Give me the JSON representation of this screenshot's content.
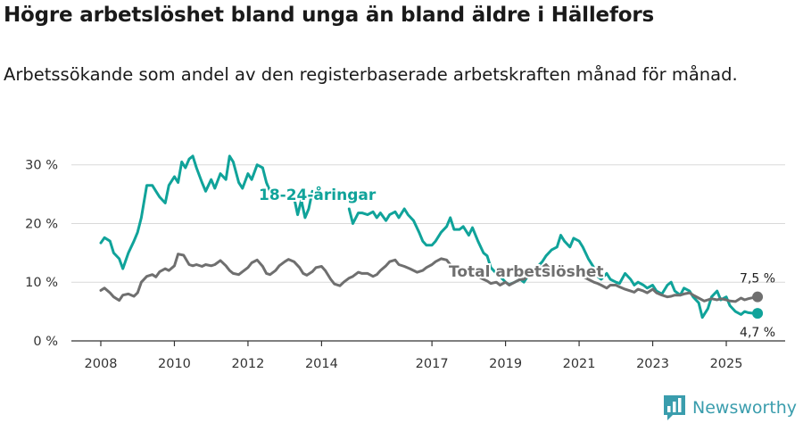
{
  "title": "Högre arbetslöshet bland unga än bland äldre i Hällefors",
  "subtitle": "Arbetssökande som andel av den registerbaserade arbetskraften månad för månad.",
  "brand": {
    "name": "Newsworthy",
    "icon": "newsworthy-logo-icon"
  },
  "colors": {
    "young": "#10a39a",
    "total": "#6f6f6f",
    "grid": "#d9d9d9",
    "axis": "#333333"
  },
  "chart_data": {
    "type": "line",
    "title": "Högre arbetslöshet bland unga än bland äldre i Hällefors",
    "xlabel": "",
    "ylabel": "",
    "xlim": [
      2007.2,
      2026.6
    ],
    "ylim": [
      0,
      33
    ],
    "x_ticks": [
      2008,
      2010,
      2012,
      2014,
      2017,
      2019,
      2021,
      2023,
      2025
    ],
    "y_ticks": [
      {
        "value": 0,
        "label": "0 %"
      },
      {
        "value": 10,
        "label": "10 %"
      },
      {
        "value": 20,
        "label": "20 %"
      },
      {
        "value": 30,
        "label": "30 %"
      }
    ],
    "series": [
      {
        "name": "18-24-åringar",
        "label": "18-24-åringar",
        "points": [
          [
            2008.0,
            16.7
          ],
          [
            2008.1,
            17.6
          ],
          [
            2008.25,
            17.0
          ],
          [
            2008.35,
            15.0
          ],
          [
            2008.5,
            14.0
          ],
          [
            2008.6,
            12.3
          ],
          [
            2008.75,
            15.0
          ],
          [
            2008.9,
            17.0
          ],
          [
            2009.0,
            18.5
          ],
          [
            2009.1,
            21.0
          ],
          [
            2009.25,
            26.5
          ],
          [
            2009.4,
            26.5
          ],
          [
            2009.5,
            25.5
          ],
          [
            2009.6,
            24.5
          ],
          [
            2009.75,
            23.5
          ],
          [
            2009.85,
            26.5
          ],
          [
            2010.0,
            28.0
          ],
          [
            2010.1,
            27.0
          ],
          [
            2010.2,
            30.5
          ],
          [
            2010.3,
            29.5
          ],
          [
            2010.4,
            31.0
          ],
          [
            2010.5,
            31.5
          ],
          [
            2010.6,
            29.5
          ],
          [
            2010.75,
            27.0
          ],
          [
            2010.85,
            25.5
          ],
          [
            2011.0,
            27.5
          ],
          [
            2011.1,
            26.0
          ],
          [
            2011.25,
            28.5
          ],
          [
            2011.4,
            27.5
          ],
          [
            2011.5,
            31.5
          ],
          [
            2011.6,
            30.5
          ],
          [
            2011.75,
            27.0
          ],
          [
            2011.85,
            26.0
          ],
          [
            2012.0,
            28.5
          ],
          [
            2012.1,
            27.5
          ],
          [
            2012.25,
            30.0
          ],
          [
            2012.4,
            29.5
          ],
          [
            2012.5,
            27.0
          ],
          [
            2012.6,
            25.5
          ],
          [
            2012.75,
            25.0
          ],
          null,
          [
            2013.25,
            24.5
          ],
          [
            2013.35,
            21.5
          ],
          [
            2013.45,
            24.0
          ],
          [
            2013.55,
            21.0
          ],
          [
            2013.65,
            22.5
          ],
          [
            2013.75,
            25.5
          ],
          [
            2013.85,
            25.0
          ],
          null,
          [
            2014.75,
            22.5
          ],
          [
            2014.85,
            20.0
          ],
          [
            2015.0,
            21.8
          ],
          [
            2015.1,
            21.8
          ],
          [
            2015.25,
            21.5
          ],
          [
            2015.4,
            22.0
          ],
          [
            2015.5,
            21.0
          ],
          [
            2015.6,
            21.8
          ],
          [
            2015.75,
            20.5
          ],
          [
            2015.85,
            21.5
          ],
          [
            2016.0,
            22.0
          ],
          [
            2016.1,
            21.0
          ],
          [
            2016.25,
            22.5
          ],
          [
            2016.35,
            21.5
          ],
          [
            2016.5,
            20.5
          ],
          [
            2016.65,
            18.5
          ],
          [
            2016.75,
            17.0
          ],
          [
            2016.85,
            16.3
          ],
          [
            2017.0,
            16.3
          ],
          [
            2017.1,
            17.0
          ],
          [
            2017.25,
            18.5
          ],
          [
            2017.4,
            19.5
          ],
          [
            2017.5,
            21.0
          ],
          [
            2017.6,
            19.0
          ],
          [
            2017.75,
            19.0
          ],
          [
            2017.85,
            19.5
          ],
          [
            2018.0,
            18.0
          ],
          [
            2018.1,
            19.3
          ],
          [
            2018.25,
            17.0
          ],
          [
            2018.4,
            15.0
          ],
          [
            2018.5,
            14.5
          ],
          [
            2018.6,
            12.5
          ],
          [
            2018.75,
            11.5
          ],
          [
            2018.85,
            11.0
          ],
          [
            2019.0,
            10.0
          ],
          [
            2019.1,
            9.6
          ],
          [
            2019.25,
            10.0
          ],
          [
            2019.4,
            10.5
          ],
          [
            2019.5,
            10.0
          ],
          [
            2019.6,
            11.0
          ],
          [
            2019.75,
            11.5
          ],
          [
            2019.85,
            12.5
          ],
          [
            2020.0,
            13.5
          ],
          [
            2020.1,
            14.5
          ],
          [
            2020.25,
            15.5
          ],
          [
            2020.4,
            16.0
          ],
          [
            2020.5,
            18.0
          ],
          [
            2020.6,
            17.0
          ],
          [
            2020.75,
            16.0
          ],
          [
            2020.85,
            17.5
          ],
          [
            2021.0,
            17.0
          ],
          [
            2021.1,
            16.0
          ],
          [
            2021.25,
            14.0
          ],
          [
            2021.4,
            12.5
          ],
          [
            2021.5,
            11.0
          ],
          [
            2021.6,
            10.5
          ],
          [
            2021.75,
            11.5
          ],
          [
            2021.85,
            10.5
          ],
          [
            2022.0,
            10.0
          ],
          [
            2022.1,
            9.8
          ],
          [
            2022.25,
            11.5
          ],
          [
            2022.4,
            10.5
          ],
          [
            2022.5,
            9.5
          ],
          [
            2022.6,
            10.0
          ],
          [
            2022.75,
            9.5
          ],
          [
            2022.85,
            9.0
          ],
          [
            2023.0,
            9.5
          ],
          [
            2023.1,
            8.5
          ],
          [
            2023.25,
            8.0
          ],
          [
            2023.4,
            9.5
          ],
          [
            2023.5,
            10.0
          ],
          [
            2023.6,
            8.5
          ],
          [
            2023.75,
            7.8
          ],
          [
            2023.85,
            9.0
          ],
          [
            2024.0,
            8.5
          ],
          [
            2024.1,
            7.5
          ],
          [
            2024.25,
            6.5
          ],
          [
            2024.35,
            4.0
          ],
          [
            2024.5,
            5.5
          ],
          [
            2024.6,
            7.5
          ],
          [
            2024.75,
            8.5
          ],
          [
            2024.85,
            7.0
          ],
          [
            2025.0,
            7.5
          ],
          [
            2025.1,
            6.0
          ],
          [
            2025.25,
            5.0
          ],
          [
            2025.4,
            4.5
          ],
          [
            2025.5,
            5.0
          ],
          [
            2025.6,
            4.8
          ],
          [
            2025.75,
            4.7
          ],
          [
            2025.85,
            4.7
          ]
        ]
      },
      {
        "name": "Total arbetslöshet",
        "label": "Total arbetslöshet",
        "points": [
          [
            2008.0,
            8.6
          ],
          [
            2008.1,
            9.0
          ],
          [
            2008.25,
            8.2
          ],
          [
            2008.35,
            7.5
          ],
          [
            2008.5,
            6.9
          ],
          [
            2008.6,
            7.8
          ],
          [
            2008.75,
            8.0
          ],
          [
            2008.9,
            7.6
          ],
          [
            2009.0,
            8.2
          ],
          [
            2009.1,
            10.0
          ],
          [
            2009.25,
            11.0
          ],
          [
            2009.4,
            11.3
          ],
          [
            2009.5,
            10.9
          ],
          [
            2009.6,
            11.8
          ],
          [
            2009.75,
            12.3
          ],
          [
            2009.85,
            12.0
          ],
          [
            2010.0,
            12.8
          ],
          [
            2010.1,
            14.8
          ],
          [
            2010.25,
            14.6
          ],
          [
            2010.4,
            13.0
          ],
          [
            2010.5,
            12.8
          ],
          [
            2010.6,
            13.0
          ],
          [
            2010.75,
            12.7
          ],
          [
            2010.85,
            13.0
          ],
          [
            2011.0,
            12.8
          ],
          [
            2011.1,
            13.0
          ],
          [
            2011.25,
            13.7
          ],
          [
            2011.4,
            12.8
          ],
          [
            2011.5,
            12.0
          ],
          [
            2011.6,
            11.5
          ],
          [
            2011.75,
            11.3
          ],
          [
            2011.85,
            11.8
          ],
          [
            2012.0,
            12.5
          ],
          [
            2012.1,
            13.3
          ],
          [
            2012.25,
            13.8
          ],
          [
            2012.4,
            12.7
          ],
          [
            2012.5,
            11.5
          ],
          [
            2012.6,
            11.3
          ],
          [
            2012.75,
            12.0
          ],
          [
            2012.85,
            12.8
          ],
          [
            2013.0,
            13.5
          ],
          [
            2013.1,
            13.9
          ],
          [
            2013.25,
            13.5
          ],
          [
            2013.4,
            12.5
          ],
          [
            2013.5,
            11.5
          ],
          [
            2013.6,
            11.2
          ],
          [
            2013.75,
            11.8
          ],
          [
            2013.85,
            12.5
          ],
          [
            2014.0,
            12.7
          ],
          [
            2014.1,
            12.0
          ],
          [
            2014.25,
            10.5
          ],
          [
            2014.35,
            9.7
          ],
          [
            2014.5,
            9.4
          ],
          [
            2014.6,
            10.0
          ],
          [
            2014.75,
            10.7
          ],
          [
            2014.85,
            11.0
          ],
          [
            2015.0,
            11.7
          ],
          [
            2015.1,
            11.5
          ],
          [
            2015.25,
            11.5
          ],
          [
            2015.4,
            11.0
          ],
          [
            2015.5,
            11.3
          ],
          [
            2015.6,
            12.0
          ],
          [
            2015.75,
            12.8
          ],
          [
            2015.85,
            13.5
          ],
          [
            2016.0,
            13.8
          ],
          [
            2016.1,
            13.0
          ],
          [
            2016.25,
            12.7
          ],
          [
            2016.4,
            12.3
          ],
          [
            2016.5,
            12.0
          ],
          [
            2016.6,
            11.7
          ],
          [
            2016.75,
            12.0
          ],
          [
            2016.85,
            12.5
          ],
          [
            2017.0,
            13.0
          ],
          [
            2017.1,
            13.5
          ],
          [
            2017.25,
            14.0
          ],
          [
            2017.4,
            13.8
          ],
          [
            2017.5,
            13.0
          ],
          [
            2017.6,
            12.6
          ],
          [
            2017.75,
            12.5
          ],
          [
            2017.85,
            12.2
          ],
          [
            2018.0,
            11.8
          ],
          [
            2018.1,
            11.5
          ],
          [
            2018.25,
            11.0
          ],
          [
            2018.4,
            10.5
          ],
          [
            2018.5,
            10.2
          ],
          [
            2018.6,
            9.8
          ],
          [
            2018.75,
            10.0
          ],
          [
            2018.85,
            9.5
          ],
          [
            2019.0,
            10.0
          ],
          [
            2019.1,
            9.5
          ],
          [
            2019.25,
            10.0
          ],
          [
            2019.4,
            10.5
          ],
          [
            2019.5,
            10.5
          ],
          [
            2019.6,
            11.0
          ],
          [
            2019.75,
            11.5
          ],
          [
            2019.85,
            12.0
          ],
          [
            2020.0,
            12.5
          ],
          [
            2020.1,
            13.0
          ],
          [
            2020.25,
            12.0
          ],
          [
            2020.4,
            12.0
          ],
          [
            2020.5,
            11.5
          ],
          [
            2020.6,
            12.0
          ],
          [
            2020.75,
            11.5
          ],
          [
            2020.85,
            11.0
          ],
          [
            2021.0,
            11.5
          ],
          [
            2021.1,
            11.0
          ],
          [
            2021.25,
            10.5
          ],
          [
            2021.4,
            10.0
          ],
          [
            2021.5,
            9.8
          ],
          [
            2021.6,
            9.5
          ],
          [
            2021.75,
            9.0
          ],
          [
            2021.85,
            9.5
          ],
          [
            2022.0,
            9.5
          ],
          [
            2022.1,
            9.2
          ],
          [
            2022.25,
            8.8
          ],
          [
            2022.4,
            8.5
          ],
          [
            2022.5,
            8.3
          ],
          [
            2022.6,
            8.8
          ],
          [
            2022.75,
            8.5
          ],
          [
            2022.85,
            8.2
          ],
          [
            2023.0,
            8.8
          ],
          [
            2023.1,
            8.2
          ],
          [
            2023.25,
            7.8
          ],
          [
            2023.4,
            7.5
          ],
          [
            2023.5,
            7.6
          ],
          [
            2023.6,
            7.8
          ],
          [
            2023.75,
            7.8
          ],
          [
            2023.85,
            8.0
          ],
          [
            2024.0,
            8.2
          ],
          [
            2024.1,
            7.8
          ],
          [
            2024.25,
            7.3
          ],
          [
            2024.4,
            6.8
          ],
          [
            2024.5,
            7.0
          ],
          [
            2024.6,
            7.2
          ],
          [
            2024.75,
            7.0
          ],
          [
            2024.85,
            7.2
          ],
          [
            2025.0,
            7.0
          ],
          [
            2025.1,
            6.8
          ],
          [
            2025.25,
            6.7
          ],
          [
            2025.4,
            7.3
          ],
          [
            2025.5,
            7.0
          ],
          [
            2025.6,
            7.2
          ],
          [
            2025.75,
            7.4
          ],
          [
            2025.85,
            7.5
          ]
        ]
      }
    ],
    "end_labels": [
      {
        "series": "Total arbetslöshet",
        "x": 2025.85,
        "value": 7.5,
        "label": "7,5 %",
        "placement": "above"
      },
      {
        "series": "18-24-åringar",
        "x": 2025.85,
        "value": 4.7,
        "label": "4,7 %",
        "placement": "below"
      }
    ],
    "grid": true,
    "legend": "inline labels"
  }
}
